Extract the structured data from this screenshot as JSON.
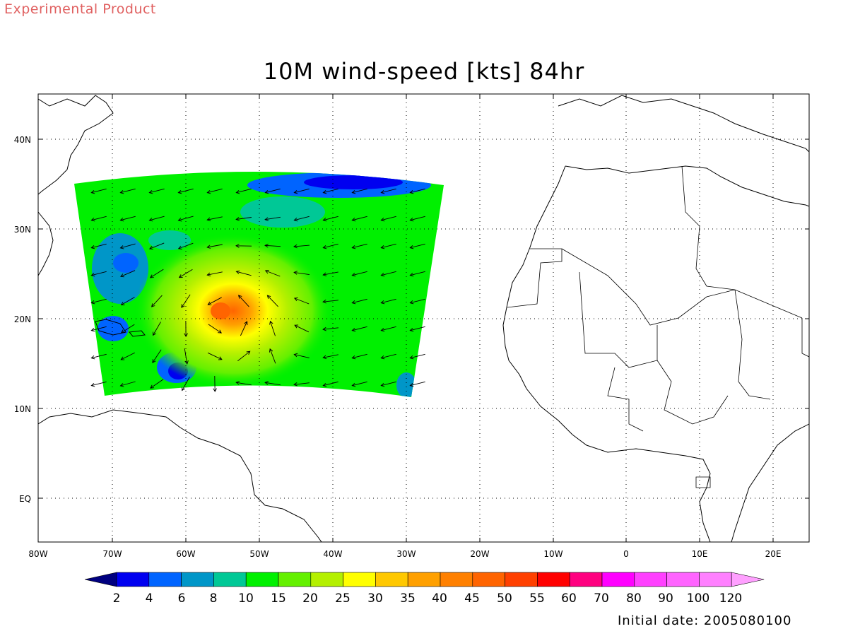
{
  "header": {
    "product_label": "Experimental Product",
    "title": "10M wind-speed [kts] 84hr"
  },
  "footer": {
    "initial_date": "Initial date: 2005080100"
  },
  "map": {
    "lon_ticks": [
      "80W",
      "70W",
      "60W",
      "50W",
      "40W",
      "30W",
      "20W",
      "10W",
      "0",
      "10E",
      "20E"
    ],
    "lat_ticks": [
      "40N",
      "30N",
      "20N",
      "10N",
      "EQ"
    ],
    "colorbar": {
      "labels": [
        "2",
        "4",
        "6",
        "8",
        "10",
        "15",
        "20",
        "25",
        "30",
        "35",
        "40",
        "45",
        "50",
        "55",
        "60",
        "70",
        "80",
        "90",
        "100",
        "120"
      ],
      "colors": [
        "#000080",
        "#0000f0",
        "#0064ff",
        "#0096c8",
        "#00c896",
        "#00f000",
        "#64f000",
        "#b4f000",
        "#ffff00",
        "#ffc800",
        "#ffa000",
        "#ff8000",
        "#ff6400",
        "#ff4000",
        "#ff0000",
        "#ff0080",
        "#ff00ff",
        "#ff40ff",
        "#ff64ff",
        "#ff80ff",
        "#ffa0ff"
      ]
    }
  }
}
